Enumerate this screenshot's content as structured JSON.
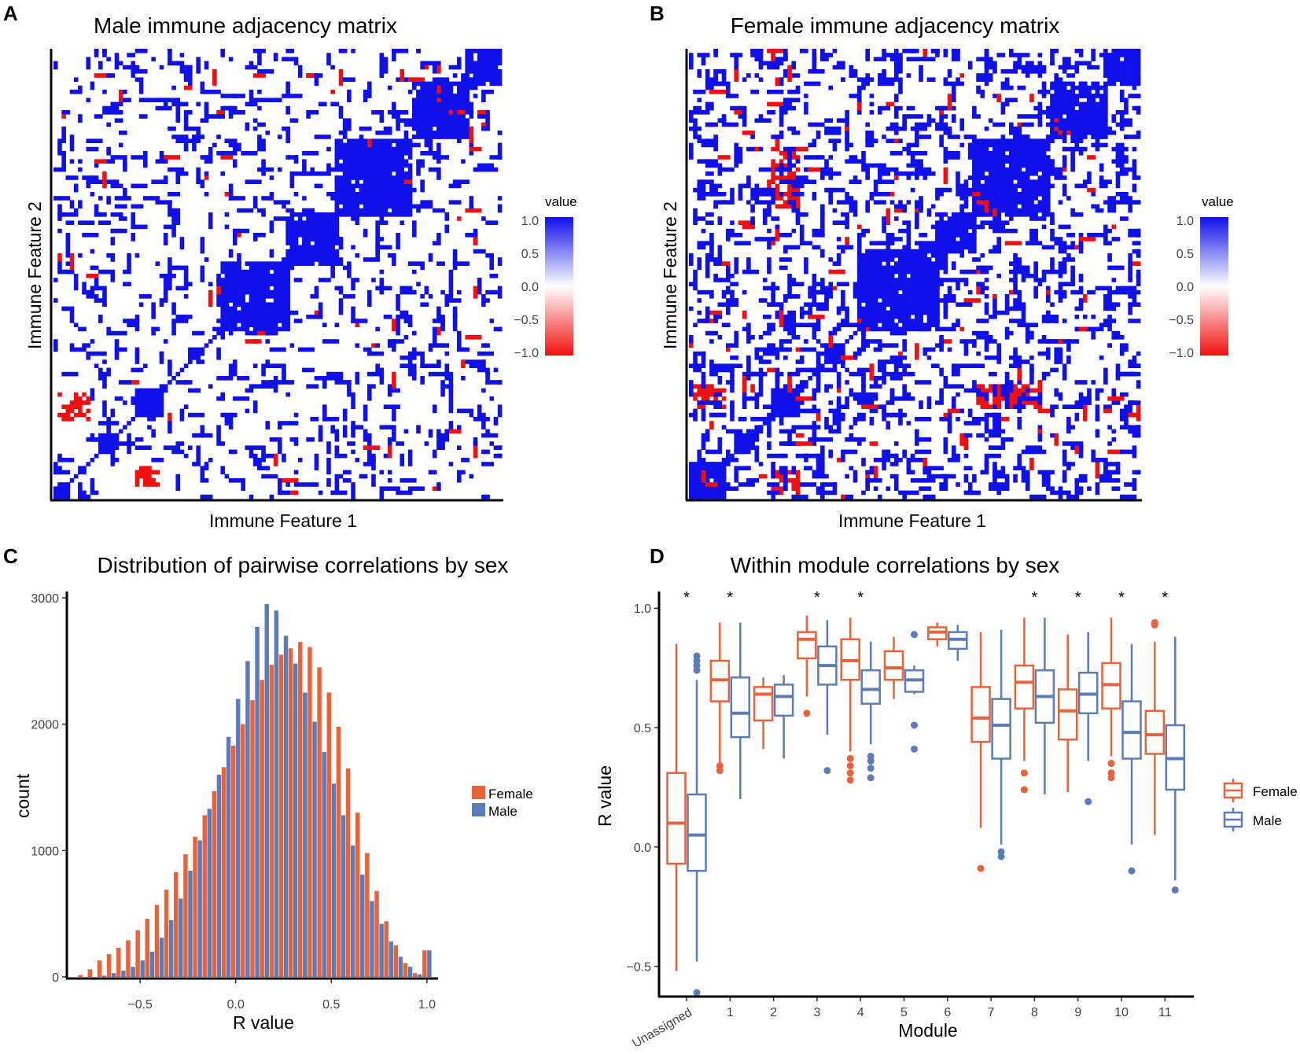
{
  "panels": {
    "A": {
      "label": "A",
      "title": "Male immune adjacency matrix",
      "xlabel": "Immune Feature 1",
      "ylabel": "Immune Feature 2",
      "legend_title": "value",
      "legend_ticks": [
        "1.0",
        "0.5",
        "0.0",
        "−0.5",
        "−1.0"
      ]
    },
    "B": {
      "label": "B",
      "title": "Female immune adjacency matrix",
      "xlabel": "Immune Feature 1",
      "ylabel": "Immune Feature 2",
      "legend_title": "value",
      "legend_ticks": [
        "1.0",
        "0.5",
        "0.0",
        "−0.5",
        "−1.0"
      ]
    },
    "C": {
      "label": "C"
    },
    "D": {
      "label": "D"
    }
  },
  "colors": {
    "pos": "#1010e8",
    "neg": "#f01010",
    "female": "#e8623a",
    "male": "#5a7dba"
  },
  "chart_data": [
    {
      "type": "heatmap",
      "title": "Male immune adjacency matrix",
      "xlabel": "Immune Feature 1",
      "ylabel": "Immune Feature 2",
      "value_range": [
        -1.0,
        1.0
      ],
      "blocks": [
        {
          "f1": [
            0.0,
            0.03
          ],
          "f2": [
            0.0,
            0.03
          ],
          "value": 1.0
        },
        {
          "f1": [
            0.1,
            0.14
          ],
          "f2": [
            0.1,
            0.14
          ],
          "value": 1.0
        },
        {
          "f1": [
            0.19,
            0.24
          ],
          "f2": [
            0.19,
            0.24
          ],
          "value": 1.0
        },
        {
          "f1": [
            0.3,
            0.33
          ],
          "f2": [
            0.3,
            0.33
          ],
          "value": 1.0
        },
        {
          "f1": [
            0.38,
            0.52
          ],
          "f2": [
            0.38,
            0.52
          ],
          "value": 1.0
        },
        {
          "f1": [
            0.52,
            0.63
          ],
          "f2": [
            0.52,
            0.63
          ],
          "value": 1.0
        },
        {
          "f1": [
            0.63,
            0.8
          ],
          "f2": [
            0.63,
            0.8
          ],
          "value": 1.0
        },
        {
          "f1": [
            0.8,
            0.92
          ],
          "f2": [
            0.8,
            0.92
          ],
          "value": 1.0
        },
        {
          "f1": [
            0.92,
            1.0
          ],
          "f2": [
            0.92,
            1.0
          ],
          "value": 1.0
        },
        {
          "f1": [
            0.01,
            0.08
          ],
          "f2": [
            0.18,
            0.23
          ],
          "value": -1.0
        },
        {
          "f1": [
            0.19,
            0.23
          ],
          "f2": [
            0.03,
            0.07
          ],
          "value": -1.0
        }
      ]
    },
    {
      "type": "heatmap",
      "title": "Female immune adjacency matrix",
      "xlabel": "Immune Feature 1",
      "ylabel": "Immune Feature 2",
      "value_range": [
        -1.0,
        1.0
      ],
      "blocks": [
        {
          "f1": [
            0.0,
            0.08
          ],
          "f2": [
            0.0,
            0.08
          ],
          "value": 1.0
        },
        {
          "f1": [
            0.1,
            0.14
          ],
          "f2": [
            0.1,
            0.14
          ],
          "value": 1.0
        },
        {
          "f1": [
            0.19,
            0.24
          ],
          "f2": [
            0.19,
            0.24
          ],
          "value": 1.0
        },
        {
          "f1": [
            0.3,
            0.34
          ],
          "f2": [
            0.3,
            0.34
          ],
          "value": 1.0
        },
        {
          "f1": [
            0.38,
            0.55
          ],
          "f2": [
            0.38,
            0.55
          ],
          "value": 1.0
        },
        {
          "f1": [
            0.55,
            0.63
          ],
          "f2": [
            0.55,
            0.63
          ],
          "value": 1.0
        },
        {
          "f1": [
            0.63,
            0.8
          ],
          "f2": [
            0.63,
            0.8
          ],
          "value": 1.0
        },
        {
          "f1": [
            0.8,
            0.92
          ],
          "f2": [
            0.8,
            0.92
          ],
          "value": 1.0
        },
        {
          "f1": [
            0.92,
            1.0
          ],
          "f2": [
            0.92,
            1.0
          ],
          "value": 1.0
        },
        {
          "f1": [
            0.01,
            0.08
          ],
          "f2": [
            0.2,
            0.25
          ],
          "value": -1.0
        },
        {
          "f1": [
            0.19,
            0.24
          ],
          "f2": [
            0.01,
            0.06
          ],
          "value": -1.0
        },
        {
          "f1": [
            0.19,
            0.24
          ],
          "f2": [
            0.65,
            0.78
          ],
          "value": -1.0
        },
        {
          "f1": [
            0.64,
            0.78
          ],
          "f2": [
            0.2,
            0.25
          ],
          "value": -1.0
        }
      ]
    },
    {
      "type": "bar",
      "title": "Distribution of pairwise correlations by sex",
      "xlabel": "R value",
      "ylabel": "count",
      "xlim": [
        -0.875,
        1.05
      ],
      "ylim": [
        0,
        3050
      ],
      "xticks": [
        -0.5,
        0.0,
        0.5,
        1.0
      ],
      "xtick_labels": [
        "−0.5",
        "0.0",
        "0.5",
        "1.0"
      ],
      "yticks": [
        0,
        1000,
        2000,
        3000
      ],
      "ytick_labels": [
        "0",
        "1000",
        "2000",
        "3000"
      ],
      "bin_width": 0.05,
      "bin_centers": [
        -0.8,
        -0.75,
        -0.7,
        -0.65,
        -0.6,
        -0.55,
        -0.5,
        -0.45,
        -0.4,
        -0.35,
        -0.3,
        -0.25,
        -0.2,
        -0.15,
        -0.1,
        -0.05,
        0.0,
        0.05,
        0.1,
        0.15,
        0.2,
        0.25,
        0.3,
        0.35,
        0.4,
        0.45,
        0.5,
        0.55,
        0.6,
        0.65,
        0.7,
        0.75,
        0.8,
        0.85,
        0.9,
        0.95,
        1.0
      ],
      "series": [
        {
          "name": "Female",
          "values": [
            15,
            60,
            130,
            180,
            230,
            290,
            370,
            460,
            570,
            690,
            830,
            970,
            1110,
            1280,
            1470,
            1660,
            1830,
            2000,
            2190,
            2350,
            2470,
            2550,
            2600,
            2650,
            2610,
            2450,
            2250,
            1980,
            1650,
            1300,
            980,
            680,
            440,
            250,
            110,
            30,
            210
          ]
        },
        {
          "name": "Male",
          "values": [
            0,
            0,
            10,
            30,
            50,
            80,
            130,
            200,
            310,
            450,
            620,
            840,
            1080,
            1330,
            1600,
            1900,
            2200,
            2500,
            2770,
            2950,
            2900,
            2700,
            2480,
            2250,
            2020,
            1780,
            1530,
            1280,
            1040,
            810,
            600,
            420,
            280,
            160,
            80,
            20,
            210
          ]
        }
      ],
      "legend": [
        "Female",
        "Male"
      ]
    },
    {
      "type": "box",
      "title": "Within module correlations by sex",
      "xlabel": "Module",
      "ylabel": "R value",
      "ylim": [
        -0.62,
        1.07
      ],
      "yticks": [
        -0.5,
        0.0,
        0.5,
        1.0
      ],
      "ytick_labels": [
        "−0.5",
        "0.0",
        "0.5",
        "1.0"
      ],
      "categories": [
        "Unassigned",
        "1",
        "2",
        "3",
        "4",
        "5",
        "6",
        "7",
        "8",
        "9",
        "10",
        "11"
      ],
      "significant": [
        true,
        true,
        false,
        true,
        true,
        false,
        false,
        false,
        true,
        true,
        true,
        true
      ],
      "series": [
        {
          "name": "Female",
          "boxes": [
            {
              "lo": -0.52,
              "q1": -0.07,
              "med": 0.1,
              "q3": 0.31,
              "hi": 0.85,
              "outliers": []
            },
            {
              "lo": 0.35,
              "q1": 0.61,
              "med": 0.7,
              "q3": 0.78,
              "hi": 0.94,
              "outliers": [
                0.32,
                0.34
              ]
            },
            {
              "lo": 0.41,
              "q1": 0.53,
              "med": 0.64,
              "q3": 0.67,
              "hi": 0.71,
              "outliers": []
            },
            {
              "lo": 0.63,
              "q1": 0.79,
              "med": 0.87,
              "q3": 0.9,
              "hi": 0.97,
              "outliers": [
                0.56
              ]
            },
            {
              "lo": 0.4,
              "q1": 0.7,
              "med": 0.78,
              "q3": 0.87,
              "hi": 0.96,
              "outliers": [
                0.28,
                0.31,
                0.34,
                0.37
              ]
            },
            {
              "lo": 0.62,
              "q1": 0.7,
              "med": 0.75,
              "q3": 0.82,
              "hi": 0.88,
              "outliers": []
            },
            {
              "lo": 0.84,
              "q1": 0.87,
              "med": 0.9,
              "q3": 0.92,
              "hi": 0.94,
              "outliers": []
            },
            {
              "lo": 0.08,
              "q1": 0.44,
              "med": 0.54,
              "q3": 0.67,
              "hi": 0.9,
              "outliers": [
                -0.09
              ]
            },
            {
              "lo": 0.36,
              "q1": 0.58,
              "med": 0.69,
              "q3": 0.76,
              "hi": 0.96,
              "outliers": [
                0.24,
                0.31
              ]
            },
            {
              "lo": 0.23,
              "q1": 0.45,
              "med": 0.57,
              "q3": 0.66,
              "hi": 0.89,
              "outliers": []
            },
            {
              "lo": 0.38,
              "q1": 0.58,
              "med": 0.68,
              "q3": 0.77,
              "hi": 0.96,
              "outliers": [
                0.29,
                0.31,
                0.35
              ]
            },
            {
              "lo": 0.05,
              "q1": 0.39,
              "med": 0.47,
              "q3": 0.57,
              "hi": 0.86,
              "outliers": [
                0.93,
                0.94
              ]
            }
          ]
        },
        {
          "name": "Male",
          "boxes": [
            {
              "lo": -0.48,
              "q1": -0.1,
              "med": 0.05,
              "q3": 0.22,
              "hi": 0.7,
              "outliers": [
                -0.61,
                0.74,
                0.76,
                0.78,
                0.8
              ]
            },
            {
              "lo": 0.2,
              "q1": 0.46,
              "med": 0.56,
              "q3": 0.71,
              "hi": 0.94,
              "outliers": []
            },
            {
              "lo": 0.37,
              "q1": 0.55,
              "med": 0.63,
              "q3": 0.68,
              "hi": 0.72,
              "outliers": []
            },
            {
              "lo": 0.47,
              "q1": 0.68,
              "med": 0.76,
              "q3": 0.84,
              "hi": 0.95,
              "outliers": [
                0.32
              ]
            },
            {
              "lo": 0.43,
              "q1": 0.6,
              "med": 0.66,
              "q3": 0.74,
              "hi": 0.86,
              "outliers": [
                0.29,
                0.33,
                0.36,
                0.38
              ]
            },
            {
              "lo": 0.64,
              "q1": 0.65,
              "med": 0.7,
              "q3": 0.74,
              "hi": 0.76,
              "outliers": [
                0.41,
                0.51,
                0.89
              ]
            },
            {
              "lo": 0.78,
              "q1": 0.83,
              "med": 0.87,
              "q3": 0.9,
              "hi": 0.93,
              "outliers": []
            },
            {
              "lo": 0.01,
              "q1": 0.37,
              "med": 0.51,
              "q3": 0.62,
              "hi": 0.91,
              "outliers": [
                -0.04,
                -0.02
              ]
            },
            {
              "lo": 0.22,
              "q1": 0.52,
              "med": 0.63,
              "q3": 0.74,
              "hi": 0.96,
              "outliers": []
            },
            {
              "lo": 0.36,
              "q1": 0.56,
              "med": 0.64,
              "q3": 0.73,
              "hi": 0.9,
              "outliers": [
                0.19
              ]
            },
            {
              "lo": 0.01,
              "q1": 0.37,
              "med": 0.48,
              "q3": 0.61,
              "hi": 0.85,
              "outliers": [
                -0.1
              ]
            },
            {
              "lo": -0.14,
              "q1": 0.24,
              "med": 0.37,
              "q3": 0.51,
              "hi": 0.88,
              "outliers": [
                -0.18
              ]
            }
          ]
        }
      ],
      "legend": [
        "Female",
        "Male"
      ]
    }
  ]
}
